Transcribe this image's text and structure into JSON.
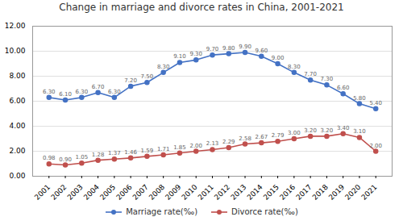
{
  "chart_data": {
    "type": "line",
    "title": "Change in marriage and divorce rates in China, 2001-2021",
    "x": [
      2001,
      2002,
      2003,
      2004,
      2005,
      2006,
      2007,
      2008,
      2009,
      2010,
      2011,
      2012,
      2013,
      2014,
      2015,
      2016,
      2017,
      2018,
      2019,
      2020,
      2021
    ],
    "series": [
      {
        "name": "Marriage rate(‰)",
        "color": "#4472C4",
        "marker": "circle",
        "values": [
          6.3,
          6.1,
          6.3,
          6.7,
          6.3,
          7.2,
          7.5,
          8.3,
          9.1,
          9.3,
          9.7,
          9.8,
          9.9,
          9.6,
          9.0,
          8.3,
          7.7,
          7.3,
          6.6,
          5.8,
          5.4
        ],
        "value_labels": [
          "6.30",
          "6.10",
          "6.30",
          "6.70",
          "6.30",
          "7.20",
          "7.50",
          "8.30",
          "9.10",
          "9.30",
          "9.70",
          "9.80",
          "9.90",
          "9.60",
          "9.00",
          "8.30",
          "7.70",
          "7.30",
          "6.60",
          "5.80",
          "5.40"
        ]
      },
      {
        "name": "Divorce rate(‰)",
        "color": "#C0504D",
        "marker": "circle",
        "values": [
          0.98,
          0.9,
          1.05,
          1.28,
          1.37,
          1.46,
          1.59,
          1.71,
          1.85,
          2.0,
          2.13,
          2.29,
          2.58,
          2.67,
          2.79,
          3.0,
          3.2,
          3.2,
          3.4,
          3.1,
          2.0
        ],
        "value_labels": [
          "0.98",
          "0.90",
          "1.05",
          "1.28",
          "1.37",
          "1.46",
          "1.59",
          "1.71",
          "1.85",
          "2.00",
          "2.13",
          "2.29",
          "2.58",
          "2.67",
          "2.79",
          "3.00",
          "3.20",
          "3.20",
          "3.40",
          "3.10",
          "2.00"
        ]
      }
    ],
    "xlim": [
      2000,
      2022
    ],
    "xticks": [
      2001,
      2002,
      2003,
      2004,
      2005,
      2006,
      2007,
      2008,
      2009,
      2010,
      2011,
      2012,
      2013,
      2014,
      2015,
      2016,
      2017,
      2018,
      2019,
      2020,
      2021
    ],
    "ylim": [
      0,
      12
    ],
    "yticks": [
      {
        "value": 0,
        "label": "0.00"
      },
      {
        "value": 2,
        "label": "2.00"
      },
      {
        "value": 4,
        "label": "4.00"
      },
      {
        "value": 6,
        "label": "6.00"
      },
      {
        "value": 8,
        "label": "8.00"
      },
      {
        "value": 10,
        "label": "10.00"
      },
      {
        "value": 12,
        "label": "12.00"
      }
    ],
    "grid": "y",
    "legend": "bottom",
    "data_labels": true
  }
}
